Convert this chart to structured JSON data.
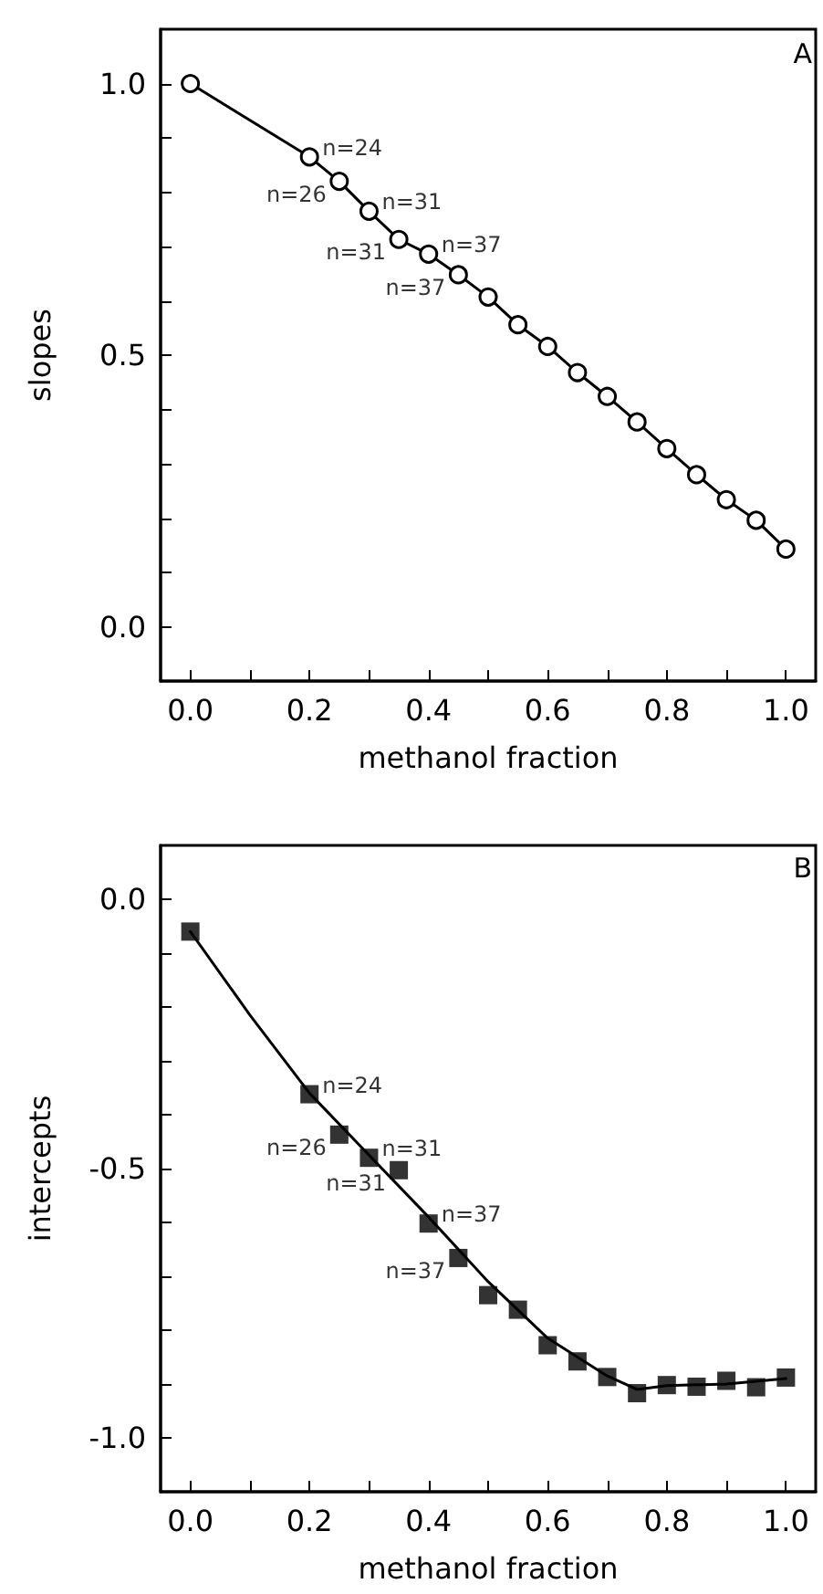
{
  "chart_data": [
    {
      "type": "line",
      "xlabel": "methanol fraction",
      "ylabel": "slopes",
      "marker": "circle",
      "line_style": "solid",
      "x": [
        0,
        0.2,
        0.25,
        0.3,
        0.35,
        0.4,
        0.45,
        0.5,
        0.55,
        0.6,
        0.65,
        0.7,
        0.75,
        0.8,
        0.85,
        0.9,
        0.95,
        1.0
      ],
      "series": [
        {
          "color": "#000000",
          "values": [
            1.0,
            0.865,
            0.82,
            0.765,
            0.713,
            0.686,
            0.648,
            0.607,
            0.556,
            0.516,
            0.468,
            0.424,
            0.377,
            0.328,
            0.28,
            0.234,
            0.196,
            0.143
          ]
        }
      ],
      "xlim": [
        -0.05,
        1.05
      ],
      "ylim": [
        -0.1,
        1.1
      ],
      "xticks": [
        {
          "value": 0,
          "label": "0.0"
        },
        {
          "value": 0.1,
          "label": null
        },
        {
          "value": 0.2,
          "label": "0.2"
        },
        {
          "value": 0.3,
          "label": null
        },
        {
          "value": 0.4,
          "label": "0.4"
        },
        {
          "value": 0.5,
          "label": null
        },
        {
          "value": 0.6,
          "label": "0.6"
        },
        {
          "value": 0.7,
          "label": null
        },
        {
          "value": 0.8,
          "label": "0.8"
        },
        {
          "value": 0.9,
          "label": null
        },
        {
          "value": 1.0,
          "label": "1.0"
        }
      ],
      "yticks": [
        {
          "value": 0,
          "label": "0.0"
        },
        {
          "value": 0.1,
          "label": null
        },
        {
          "value": 0.2,
          "label": null
        },
        {
          "value": 0.3,
          "label": null
        },
        {
          "value": 0.4,
          "label": null
        },
        {
          "value": 0.5,
          "label": "0.5"
        },
        {
          "value": 0.6,
          "label": null
        },
        {
          "value": 0.7,
          "label": null
        },
        {
          "value": 0.8,
          "label": null
        },
        {
          "value": 0.9,
          "label": null
        },
        {
          "value": 1.0,
          "label": "1.0"
        }
      ],
      "annotations": [
        "A",
        {
          "text": "n=24",
          "x": 0.2,
          "y": 0.865
        },
        {
          "text": "n=26",
          "x": 0.25,
          "y": 0.82
        },
        {
          "text": "n=31",
          "x": 0.3,
          "y": 0.765
        },
        {
          "text": "n=31",
          "x": 0.35,
          "y": 0.713
        },
        {
          "text": "n=37",
          "x": 0.4,
          "y": 0.686
        },
        {
          "text": "n=37",
          "x": 0.45,
          "y": 0.648
        }
      ]
    },
    {
      "type": "scatter",
      "xlabel": "methanol fraction",
      "ylabel": "intercepts",
      "marker": "square",
      "x": [
        0,
        0.2,
        0.25,
        0.3,
        0.35,
        0.4,
        0.45,
        0.5,
        0.55,
        0.6,
        0.65,
        0.7,
        0.75,
        0.8,
        0.85,
        0.9,
        0.95,
        1.0
      ],
      "series": [
        {
          "color": "#000000",
          "values": [
            -0.06,
            -0.362,
            -0.437,
            -0.48,
            -0.503,
            -0.602,
            -0.666,
            -0.735,
            -0.762,
            -0.828,
            -0.858,
            -0.887,
            -0.917,
            -0.902,
            -0.905,
            -0.894,
            -0.906,
            -0.888
          ]
        },
        {
          "type": "line",
          "color": "#000000",
          "marker": "none",
          "line_style": "solid",
          "x": [
            0,
            0.1,
            0.2,
            0.3,
            0.4,
            0.5,
            0.6,
            0.7,
            0.75,
            0.8,
            0.9,
            1.0
          ],
          "values": [
            -0.06,
            -0.215,
            -0.36,
            -0.475,
            -0.59,
            -0.71,
            -0.815,
            -0.885,
            -0.91,
            -0.903,
            -0.9,
            -0.89
          ]
        }
      ],
      "xlim": [
        -0.05,
        1.05
      ],
      "ylim": [
        -1.1,
        0.1
      ],
      "xticks": [
        {
          "value": 0,
          "label": "0.0"
        },
        {
          "value": 0.1,
          "label": null
        },
        {
          "value": 0.2,
          "label": "0.2"
        },
        {
          "value": 0.3,
          "label": null
        },
        {
          "value": 0.4,
          "label": "0.4"
        },
        {
          "value": 0.5,
          "label": null
        },
        {
          "value": 0.6,
          "label": "0.6"
        },
        {
          "value": 0.7,
          "label": null
        },
        {
          "value": 0.8,
          "label": "0.8"
        },
        {
          "value": 0.9,
          "label": null
        },
        {
          "value": 1.0,
          "label": "1.0"
        }
      ],
      "yticks": [
        {
          "value": -1.0,
          "label": "-1.0"
        },
        {
          "value": -0.9,
          "label": null
        },
        {
          "value": -0.8,
          "label": null
        },
        {
          "value": -0.7,
          "label": null
        },
        {
          "value": -0.6,
          "label": null
        },
        {
          "value": -0.5,
          "label": "-0.5"
        },
        {
          "value": -0.4,
          "label": null
        },
        {
          "value": -0.3,
          "label": null
        },
        {
          "value": -0.2,
          "label": null
        },
        {
          "value": -0.1,
          "label": null
        },
        {
          "value": 0,
          "label": "0.0"
        }
      ],
      "annotations": [
        "B",
        {
          "text": "n=24",
          "x": 0.2,
          "y": -0.362
        },
        {
          "text": "n=26",
          "x": 0.25,
          "y": -0.437
        },
        {
          "text": "n=31",
          "x": 0.3,
          "y": -0.48
        },
        {
          "text": "n=31",
          "x": 0.35,
          "y": -0.503
        },
        {
          "text": "n=37",
          "x": 0.4,
          "y": -0.602
        },
        {
          "text": "n=37",
          "x": 0.45,
          "y": -0.666
        }
      ]
    }
  ]
}
